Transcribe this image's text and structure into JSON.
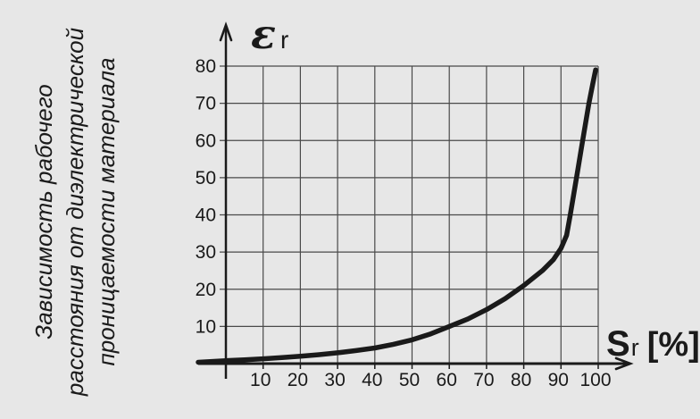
{
  "title": {
    "lines": [
      "Зависимость рабочего",
      "расстояния от диэлектрической",
      "проницаемости материала"
    ]
  },
  "axis_labels": {
    "y_symbol": "ε",
    "y_sub": "r",
    "x_symbol": "S",
    "x_sub": "r",
    "x_unit": "[%]"
  },
  "colors": {
    "background": "#e7e7e7",
    "grid": "#4a4a4a",
    "axis": "#1a1a1a",
    "curve": "#1a1a1a",
    "text": "#1a1a1a"
  },
  "chart_data": {
    "type": "line",
    "title": "Зависимость рабочего расстояния от диэлектрической проницаемости материала",
    "xlabel": "Sr [%]",
    "ylabel": "εr",
    "xlim": [
      0,
      100
    ],
    "ylim": [
      0,
      80
    ],
    "x_ticks": [
      10,
      20,
      30,
      40,
      50,
      60,
      70,
      80,
      90,
      100
    ],
    "y_ticks": [
      10,
      20,
      30,
      40,
      50,
      60,
      70,
      80
    ],
    "grid": true,
    "legend": false,
    "series": [
      {
        "name": "εr(Sr)",
        "x": [
          0,
          5,
          10,
          15,
          20,
          25,
          30,
          35,
          40,
          45,
          50,
          55,
          60,
          65,
          70,
          75,
          80,
          85,
          88,
          90,
          91.5,
          92.5,
          93.5,
          94.5,
          95.5,
          96.5,
          97.5,
          98.5,
          99.3
        ],
        "y": [
          0.8,
          1.0,
          1.3,
          1.6,
          2.0,
          2.4,
          2.9,
          3.5,
          4.2,
          5.2,
          6.4,
          8.0,
          10,
          12,
          14.5,
          17.5,
          21,
          25,
          28,
          31,
          34.5,
          40,
          46,
          52,
          58,
          64,
          70,
          75,
          79
        ]
      }
    ]
  }
}
